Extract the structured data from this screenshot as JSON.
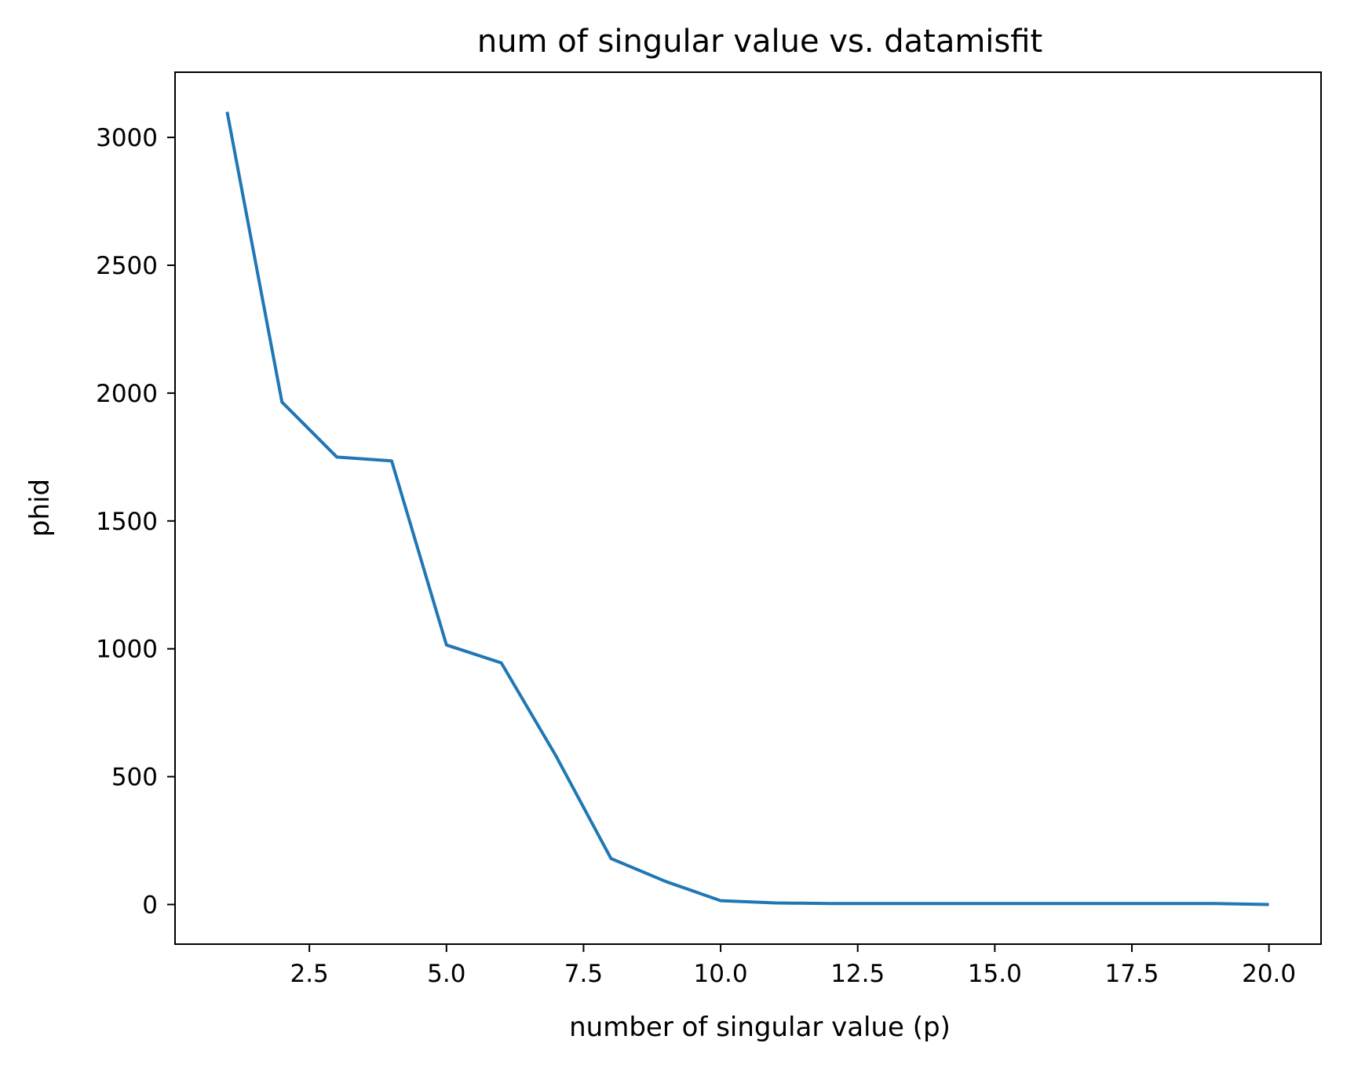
{
  "chart_data": {
    "type": "line",
    "title": "num of singular value vs. datamisfit",
    "xlabel": "number of singular value (p)",
    "ylabel": "phid",
    "xlim": [
      0.05,
      20.95
    ],
    "ylim": [
      -155,
      3255
    ],
    "x_ticks": [
      2.5,
      5.0,
      7.5,
      10.0,
      12.5,
      15.0,
      17.5,
      20.0
    ],
    "x_tick_labels": [
      "2.5",
      "5.0",
      "7.5",
      "10.0",
      "12.5",
      "15.0",
      "17.5",
      "20.0"
    ],
    "y_ticks": [
      0,
      500,
      1000,
      1500,
      2000,
      2500,
      3000
    ],
    "y_tick_labels": [
      "0",
      "500",
      "1000",
      "1500",
      "2000",
      "2500",
      "3000"
    ],
    "grid": false,
    "series": [
      {
        "color": "#1f77b4",
        "x": [
          1,
          2,
          3,
          4,
          5,
          6,
          7,
          8,
          9,
          10,
          11,
          12,
          13,
          14,
          15,
          16,
          17,
          18,
          19,
          20
        ],
        "y": [
          3100,
          1965,
          1750,
          1735,
          1015,
          945,
          580,
          180,
          90,
          15,
          6,
          4,
          4,
          4,
          4,
          4,
          4,
          4,
          4,
          0
        ]
      }
    ]
  }
}
